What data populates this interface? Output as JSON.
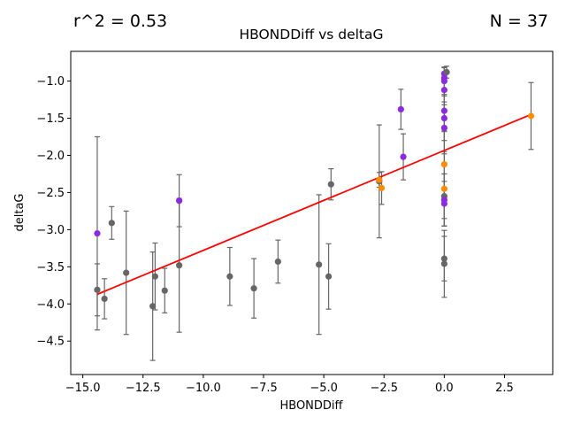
{
  "chart_data": {
    "type": "scatter",
    "title": "HBONDDiff vs deltaG",
    "xlabel": "HBONDDiff",
    "ylabel": "deltaG",
    "r2_text": "r^2 = 0.53",
    "n_text": "N = 37",
    "xlim": [
      -15.5,
      4.5
    ],
    "ylim": [
      -4.95,
      -0.6
    ],
    "xticks": [
      -15.0,
      -12.5,
      -10.0,
      -7.5,
      -5.0,
      -2.5,
      0.0,
      2.5
    ],
    "xtick_labels": [
      "−15.0",
      "−12.5",
      "−10.0",
      "−7.5",
      "−5.0",
      "−2.5",
      "0.0",
      "2.5"
    ],
    "yticks": [
      -4.5,
      -4.0,
      -3.5,
      -3.0,
      -2.5,
      -2.0,
      -1.5,
      -1.0
    ],
    "ytick_labels": [
      "−4.5",
      "−4.0",
      "−3.5",
      "−3.0",
      "−2.5",
      "−2.0",
      "−1.5",
      "−1.0"
    ],
    "grid": false,
    "colors": {
      "gray": "#666666",
      "purple": "#8a2be2",
      "orange": "#ff8c00",
      "fit": "#ff0000",
      "errorbar": "#666666"
    },
    "fit_line": {
      "x": [
        -14.4,
        3.6
      ],
      "y": [
        -3.87,
        -1.45
      ]
    },
    "points": [
      {
        "x": -14.4,
        "y": -3.05,
        "err": 1.3,
        "color": "purple"
      },
      {
        "x": -14.4,
        "y": -3.81,
        "err": 0.35,
        "color": "gray"
      },
      {
        "x": -14.1,
        "y": -3.93,
        "err": 0.27,
        "color": "gray"
      },
      {
        "x": -13.8,
        "y": -2.91,
        "err": 0.22,
        "color": "gray"
      },
      {
        "x": -13.2,
        "y": -3.58,
        "err": 0.83,
        "color": "gray"
      },
      {
        "x": -12.1,
        "y": -4.03,
        "err": 0.73,
        "color": "gray"
      },
      {
        "x": -12.0,
        "y": -3.63,
        "err": 0.45,
        "color": "gray"
      },
      {
        "x": -11.6,
        "y": -3.82,
        "err": 0.3,
        "color": "gray"
      },
      {
        "x": -11.0,
        "y": -2.61,
        "err": 0.35,
        "color": "purple"
      },
      {
        "x": -11.0,
        "y": -3.48,
        "err": 0.9,
        "color": "gray"
      },
      {
        "x": -8.9,
        "y": -3.63,
        "err": 0.39,
        "color": "gray"
      },
      {
        "x": -7.9,
        "y": -3.79,
        "err": 0.4,
        "color": "gray"
      },
      {
        "x": -6.9,
        "y": -3.43,
        "err": 0.29,
        "color": "gray"
      },
      {
        "x": -5.2,
        "y": -3.47,
        "err": 0.94,
        "color": "gray"
      },
      {
        "x": -4.8,
        "y": -3.63,
        "err": 0.44,
        "color": "gray"
      },
      {
        "x": -4.7,
        "y": -2.39,
        "err": 0.21,
        "color": "gray"
      },
      {
        "x": -2.7,
        "y": -2.35,
        "err": 0.76,
        "color": "gray"
      },
      {
        "x": -2.7,
        "y": -2.33,
        "err": 0.1,
        "color": "orange"
      },
      {
        "x": -2.6,
        "y": -2.44,
        "err": 0.22,
        "color": "orange"
      },
      {
        "x": -1.8,
        "y": -1.38,
        "err": 0.27,
        "color": "purple"
      },
      {
        "x": -1.7,
        "y": -2.02,
        "err": 0.31,
        "color": "purple"
      },
      {
        "x": 0.0,
        "y": -0.9,
        "err": 0.08,
        "color": "purple"
      },
      {
        "x": 0.0,
        "y": -0.96,
        "err": 0.15,
        "color": "purple"
      },
      {
        "x": 0.0,
        "y": -1.0,
        "err": 0.18,
        "color": "purple"
      },
      {
        "x": 0.0,
        "y": -1.12,
        "err": 0.2,
        "color": "purple"
      },
      {
        "x": 0.0,
        "y": -1.4,
        "err": 0.28,
        "color": "purple"
      },
      {
        "x": 0.0,
        "y": -1.5,
        "err": 0.3,
        "color": "purple"
      },
      {
        "x": 0.0,
        "y": -1.63,
        "err": 0.35,
        "color": "purple"
      },
      {
        "x": 0.0,
        "y": -2.12,
        "err": 0.45,
        "color": "orange"
      },
      {
        "x": 0.0,
        "y": -2.45,
        "err": 0.5,
        "color": "orange"
      },
      {
        "x": 0.0,
        "y": -2.55,
        "err": 0.3,
        "color": "gray"
      },
      {
        "x": 0.0,
        "y": -2.6,
        "err": 0.35,
        "color": "purple"
      },
      {
        "x": 0.0,
        "y": -2.65,
        "err": 0.3,
        "color": "purple"
      },
      {
        "x": 0.0,
        "y": -3.39,
        "err": 0.3,
        "color": "gray"
      },
      {
        "x": 0.0,
        "y": -3.46,
        "err": 0.45,
        "color": "gray"
      },
      {
        "x": 0.1,
        "y": -0.88,
        "err": 0.08,
        "color": "gray"
      },
      {
        "x": 3.6,
        "y": -1.47,
        "err": 0.45,
        "color": "orange"
      }
    ]
  }
}
